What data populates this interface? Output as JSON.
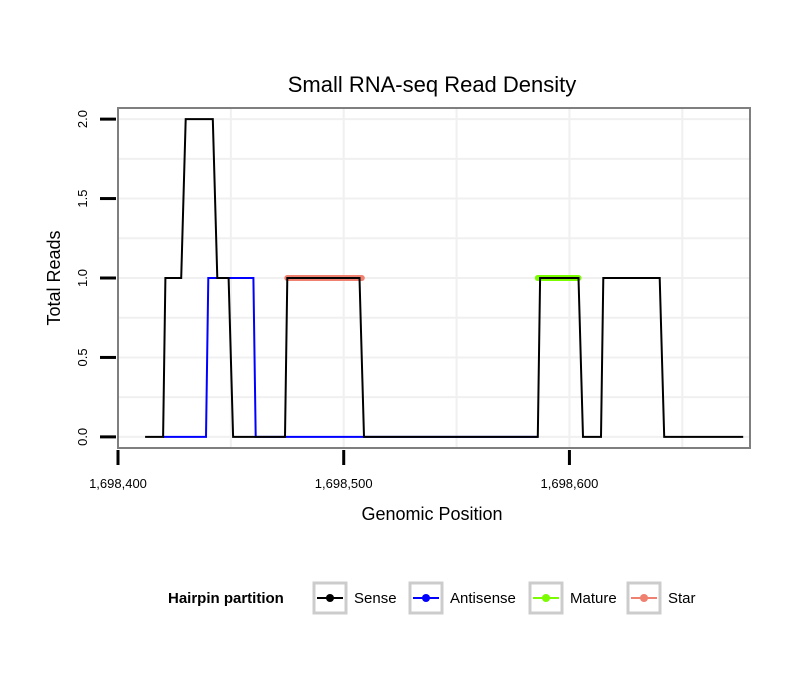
{
  "chart_data": {
    "type": "line",
    "title": "Small RNA-seq Read Density",
    "xlabel": "Genomic Position",
    "ylabel": "Total Reads",
    "xlim": [
      1698400,
      1698680
    ],
    "ylim": [
      -0.07,
      2.07
    ],
    "x_ticks": [
      1698400,
      1698500,
      1698600
    ],
    "x_tick_labels": [
      "1,698,400",
      "1,698,500",
      "1,698,600"
    ],
    "y_ticks": [
      0,
      0.5,
      1,
      1.5,
      2
    ],
    "y_tick_labels": [
      "0.0",
      "0.5",
      "1.0",
      "1.5",
      "2.0"
    ],
    "grid": true,
    "legend_title": "Hairpin partition",
    "legend_position": "bottom",
    "series": [
      {
        "name": "Sense",
        "color": "#000000",
        "points": [
          [
            1698412,
            0
          ],
          [
            1698420,
            0
          ],
          [
            1698421,
            1
          ],
          [
            1698428,
            1
          ],
          [
            1698430,
            2
          ],
          [
            1698442,
            2
          ],
          [
            1698444,
            1
          ],
          [
            1698449,
            1
          ],
          [
            1698451,
            0
          ],
          [
            1698474,
            0
          ],
          [
            1698475,
            1
          ],
          [
            1698507,
            1
          ],
          [
            1698509,
            0
          ],
          [
            1698586,
            0
          ],
          [
            1698587,
            1
          ],
          [
            1698604,
            1
          ],
          [
            1698606,
            0
          ],
          [
            1698614,
            0
          ],
          [
            1698615,
            1
          ],
          [
            1698640,
            1
          ],
          [
            1698642,
            0
          ],
          [
            1698677,
            0
          ]
        ]
      },
      {
        "name": "Antisense",
        "color": "#0000ff",
        "points": [
          [
            1698420,
            0
          ],
          [
            1698439,
            0
          ],
          [
            1698440,
            1
          ],
          [
            1698460,
            1
          ],
          [
            1698461,
            0
          ],
          [
            1698586,
            0
          ],
          [
            1698586,
            0
          ]
        ]
      },
      {
        "name": "Mature",
        "color": "#7cfc00",
        "points": [
          [
            1698586,
            1
          ],
          [
            1698604,
            1
          ]
        ]
      },
      {
        "name": "Star",
        "color": "#f08070",
        "points": [
          [
            1698475,
            1
          ],
          [
            1698508,
            1
          ]
        ]
      }
    ]
  }
}
